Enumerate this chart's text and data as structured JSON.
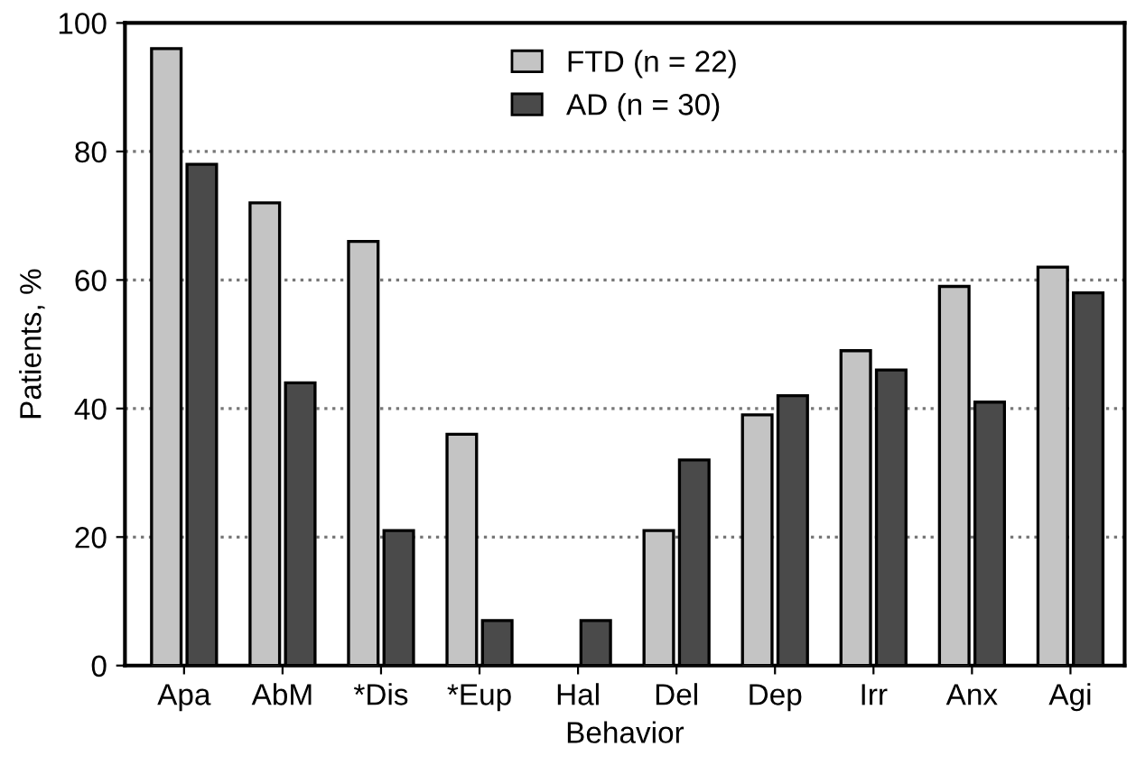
{
  "chart_data": {
    "type": "bar",
    "xlabel": "Behavior",
    "ylabel": "Patients, %",
    "categories": [
      "Apa",
      "AbM",
      "*Dis",
      "*Eup",
      "Hal",
      "Del",
      "Dep",
      "Irr",
      "Anx",
      "Agi"
    ],
    "series": [
      {
        "name": "FTD (n = 22)",
        "color": "#c4c4c4",
        "values": [
          96,
          72,
          66,
          36,
          0,
          21,
          39,
          49,
          59,
          62
        ]
      },
      {
        "name": "AD (n = 30)",
        "color": "#4a4a4a",
        "values": [
          78,
          44,
          21,
          7,
          7,
          32,
          42,
          46,
          41,
          58
        ]
      }
    ],
    "ylim": [
      0,
      100
    ],
    "yticks": [
      0,
      20,
      40,
      60,
      80,
      100
    ],
    "grid": "y",
    "legend": "top"
  }
}
